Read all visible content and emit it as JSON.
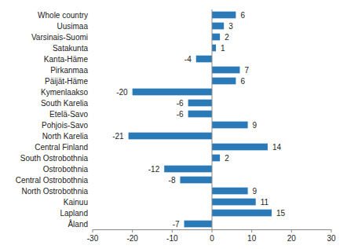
{
  "chart_data": {
    "type": "bar",
    "orientation": "horizontal",
    "categories": [
      "Whole country",
      "Uusimaa",
      "Varsinais-Suomi",
      "Satakunta",
      "Kanta-Häme",
      "Pirkanmaa",
      "Päijät-Häme",
      "Kymenlaakso",
      "South Karelia",
      "Etelä-Savo",
      "Pohjois-Savo",
      "North Karelia",
      "Central Finland",
      "South Ostrobothnia",
      "Ostrobothnia",
      "Central Ostrobothnia",
      "North Ostrobothnia",
      "Kainuu",
      "Lapland",
      "Åland"
    ],
    "values": [
      6,
      3,
      2,
      1,
      -4,
      7,
      6,
      -20,
      -6,
      -6,
      9,
      -21,
      14,
      2,
      -12,
      -8,
      9,
      11,
      15,
      -7
    ],
    "color": "#2a7ab8",
    "xlim": [
      -30,
      30
    ],
    "xticks": [
      -30,
      -20,
      -10,
      0,
      10,
      20,
      30
    ],
    "grid": false,
    "data_labels": true
  }
}
